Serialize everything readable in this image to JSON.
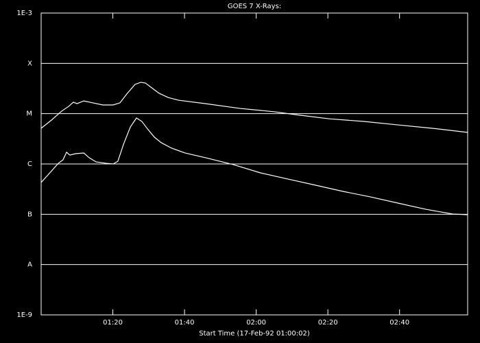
{
  "chart_data": {
    "type": "line",
    "title": "GOES 7 X-Rays:",
    "x_label": "Start Time (17-Feb-92 01:00:02)",
    "log_y": true,
    "grid": true,
    "color": "#ffffff",
    "xlim": [
      0,
      119
    ],
    "ylim": [
      1e-09,
      0.001
    ],
    "xticks": [
      {
        "value": 20,
        "label": "01:20"
      },
      {
        "value": 40,
        "label": "01:40"
      },
      {
        "value": 60,
        "label": "02:00"
      },
      {
        "value": 80,
        "label": "02:20"
      },
      {
        "value": 100,
        "label": "02:40"
      }
    ],
    "yticks": [
      {
        "value": 0.001,
        "label": "1E-3"
      },
      {
        "value": 0.0001,
        "label": "X"
      },
      {
        "value": 1e-05,
        "label": "M"
      },
      {
        "value": 1e-06,
        "label": "C"
      },
      {
        "value": 1e-07,
        "label": "B"
      },
      {
        "value": 1e-08,
        "label": "A"
      },
      {
        "value": 1e-09,
        "label": "1E-9"
      }
    ],
    "series": [
      {
        "color": "#ffffff",
        "x": [
          0,
          2.9,
          5.7,
          7.7,
          9.0,
          10.0,
          11.9,
          14.4,
          17.2,
          20.1,
          22.0,
          23.9,
          26.2,
          27.8,
          29.1,
          30.6,
          32.9,
          35.4,
          38.3,
          45.9,
          55.5,
          65.1,
          70.8,
          80.4,
          90.0,
          99.5,
          109.1,
          119.0
        ],
        "values": [
          5.12e-06,
          7.46e-06,
          1.12e-05,
          1.4e-05,
          1.69e-05,
          1.58e-05,
          1.79e-05,
          1.64e-05,
          1.49e-05,
          1.49e-05,
          1.64e-05,
          2.46e-05,
          3.82e-05,
          4.2e-05,
          4.06e-05,
          3.37e-05,
          2.54e-05,
          2.1e-05,
          1.85e-05,
          1.58e-05,
          1.27e-05,
          1.09e-05,
          9.6e-06,
          7.9e-06,
          7e-06,
          5.98e-06,
          5.12e-06,
          4.24e-06
        ]
      },
      {
        "color": "#ffffff",
        "x": [
          0,
          1.9,
          4.8,
          6.1,
          7.1,
          8.0,
          9.6,
          11.9,
          13.4,
          15.3,
          18.2,
          20.1,
          21.4,
          23.0,
          24.9,
          26.6,
          28.1,
          29.7,
          31.6,
          33.5,
          36.4,
          40.2,
          45.9,
          53.6,
          61.2,
          68.9,
          76.6,
          84.2,
          91.9,
          99.5,
          107.2,
          114.8,
          119.0
        ],
        "values": [
          4.29e-07,
          6.05e-07,
          1.03e-06,
          1.21e-06,
          1.71e-06,
          1.5e-06,
          1.6e-06,
          1.65e-06,
          1.33e-06,
          1.1e-06,
          1.03e-06,
          1e-06,
          1.13e-06,
          2.48e-06,
          5.45e-06,
          8.2e-06,
          7e-06,
          4.95e-06,
          3.4e-06,
          2.65e-06,
          2.06e-06,
          1.65e-06,
          1.33e-06,
          9.7e-07,
          6.65e-07,
          5e-07,
          3.78e-07,
          2.85e-07,
          2.21e-07,
          1.67e-07,
          1.26e-07,
          1.01e-07,
          9.8e-08
        ]
      }
    ]
  }
}
